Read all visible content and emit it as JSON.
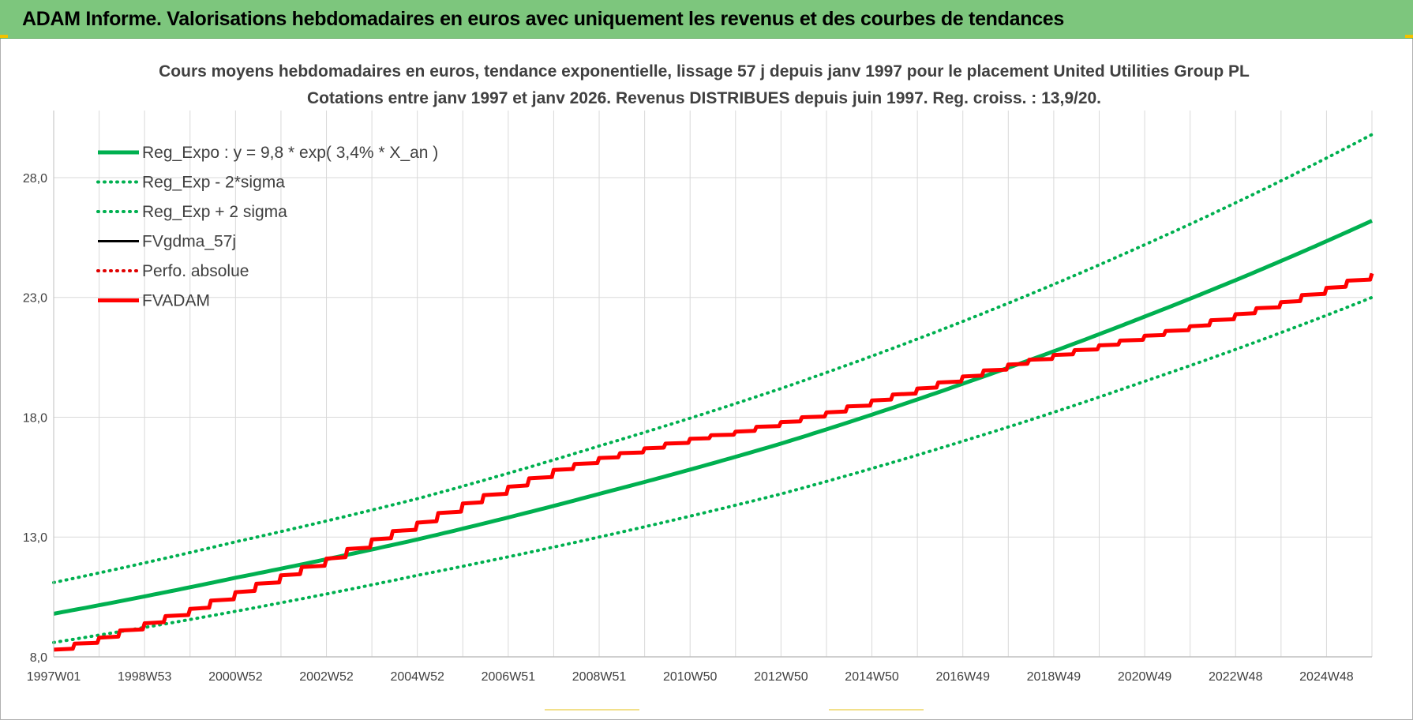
{
  "header": {
    "title": "ADAM Informe. Valorisations hebdomadaires en euros avec uniquement les revenus et des courbes de tendances"
  },
  "colors": {
    "header_bg": "#7dc67d",
    "reg_expo": "#00b050",
    "fvgdma": "#000000",
    "perfo": "#e00000",
    "fvadam": "#ff0000",
    "grid": "#d9d9d9",
    "text": "#404040"
  },
  "chart_data": {
    "type": "line",
    "title": "Cours moyens hebdomadaires en euros, tendance exponentielle, lissage 57 j depuis janv 1997 pour le placement United Utilities Group PL",
    "subtitle": "Cotations entre janv 1997 et janv 2026. Revenus DISTRIBUES depuis juin 1997. Reg. croiss. : 13,9/20.",
    "xlabel": "",
    "ylabel": "",
    "ylim": [
      8,
      30.8
    ],
    "y_ticks": [
      "8,0",
      "13,0",
      "18,0",
      "23,0",
      "28,0"
    ],
    "y_tick_values": [
      8,
      13,
      18,
      23,
      28
    ],
    "x_range_years": [
      1997.0,
      2026.0
    ],
    "x_tick_labels": [
      "1997W01",
      "1998W53",
      "2000W52",
      "2002W52",
      "2004W52",
      "2006W51",
      "2008W51",
      "2010W50",
      "2012W50",
      "2014W50",
      "2016W49",
      "2018W49",
      "2020W49",
      "2022W48",
      "2024W48"
    ],
    "x_tick_years": [
      1997.0,
      1999.0,
      2001.0,
      2003.0,
      2005.0,
      2007.0,
      2009.0,
      2011.0,
      2013.0,
      2015.0,
      2017.0,
      2019.0,
      2021.0,
      2023.0,
      2025.0
    ],
    "grid": true,
    "legend_position": "top-left",
    "series": [
      {
        "name": "Reg_Expo : y = 9,8 * exp( 3,4% *  X_an )",
        "style": "solid",
        "color": "#00b050",
        "x": [
          1997,
          2001,
          2005,
          2009,
          2013,
          2017,
          2021,
          2026
        ],
        "y": [
          9.8,
          11.3,
          12.9,
          14.8,
          16.9,
          19.4,
          22.2,
          26.2
        ]
      },
      {
        "name": "Reg_Exp - 2*sigma",
        "style": "dotted",
        "color": "#00b050",
        "x": [
          1997,
          2001,
          2005,
          2009,
          2013,
          2017,
          2021,
          2026
        ],
        "y": [
          8.6,
          9.9,
          11.4,
          13.0,
          14.8,
          17.0,
          19.5,
          23.0
        ]
      },
      {
        "name": "Reg_Exp + 2 sigma",
        "style": "dotted",
        "color": "#00b050",
        "x": [
          1997,
          2001,
          2005,
          2009,
          2013,
          2017,
          2021,
          2026
        ],
        "y": [
          11.1,
          12.8,
          14.6,
          16.8,
          19.2,
          22.0,
          25.2,
          29.8
        ]
      },
      {
        "name": "FVgdma_57j",
        "style": "solid",
        "color": "#000000",
        "x": [
          1997,
          1998,
          1999,
          2000,
          2001,
          2002,
          2003,
          2004,
          2005,
          2006,
          2007,
          2008,
          2009,
          2010,
          2011,
          2012,
          2013,
          2014,
          2015,
          2016,
          2017,
          2018,
          2019,
          2020,
          2021,
          2022,
          2023,
          2024,
          2025,
          2026
        ],
        "y": [
          8.3,
          8.8,
          9.4,
          10.0,
          10.7,
          11.4,
          12.1,
          12.9,
          13.6,
          14.4,
          15.1,
          15.8,
          16.3,
          16.7,
          17.1,
          17.4,
          17.8,
          18.2,
          18.7,
          19.2,
          19.7,
          20.2,
          20.6,
          21.0,
          21.4,
          21.8,
          22.3,
          22.8,
          23.4,
          24.0
        ]
      },
      {
        "name": "Perfo. absolue",
        "style": "dotted",
        "color": "#e00000",
        "x": [],
        "y": []
      },
      {
        "name": "FVADAM",
        "style": "solid",
        "color": "#ff0000",
        "x": [
          1997,
          1998,
          1999,
          2000,
          2001,
          2002,
          2003,
          2004,
          2005,
          2006,
          2007,
          2008,
          2009,
          2010,
          2011,
          2012,
          2013,
          2014,
          2015,
          2016,
          2017,
          2018,
          2019,
          2020,
          2021,
          2022,
          2023,
          2024,
          2025,
          2026
        ],
        "y": [
          8.3,
          8.8,
          9.4,
          10.0,
          10.7,
          11.4,
          12.1,
          12.9,
          13.6,
          14.4,
          15.1,
          15.8,
          16.3,
          16.7,
          17.1,
          17.4,
          17.8,
          18.2,
          18.7,
          19.2,
          19.7,
          20.2,
          20.6,
          21.0,
          21.4,
          21.8,
          22.3,
          22.8,
          23.4,
          24.0
        ]
      }
    ]
  }
}
